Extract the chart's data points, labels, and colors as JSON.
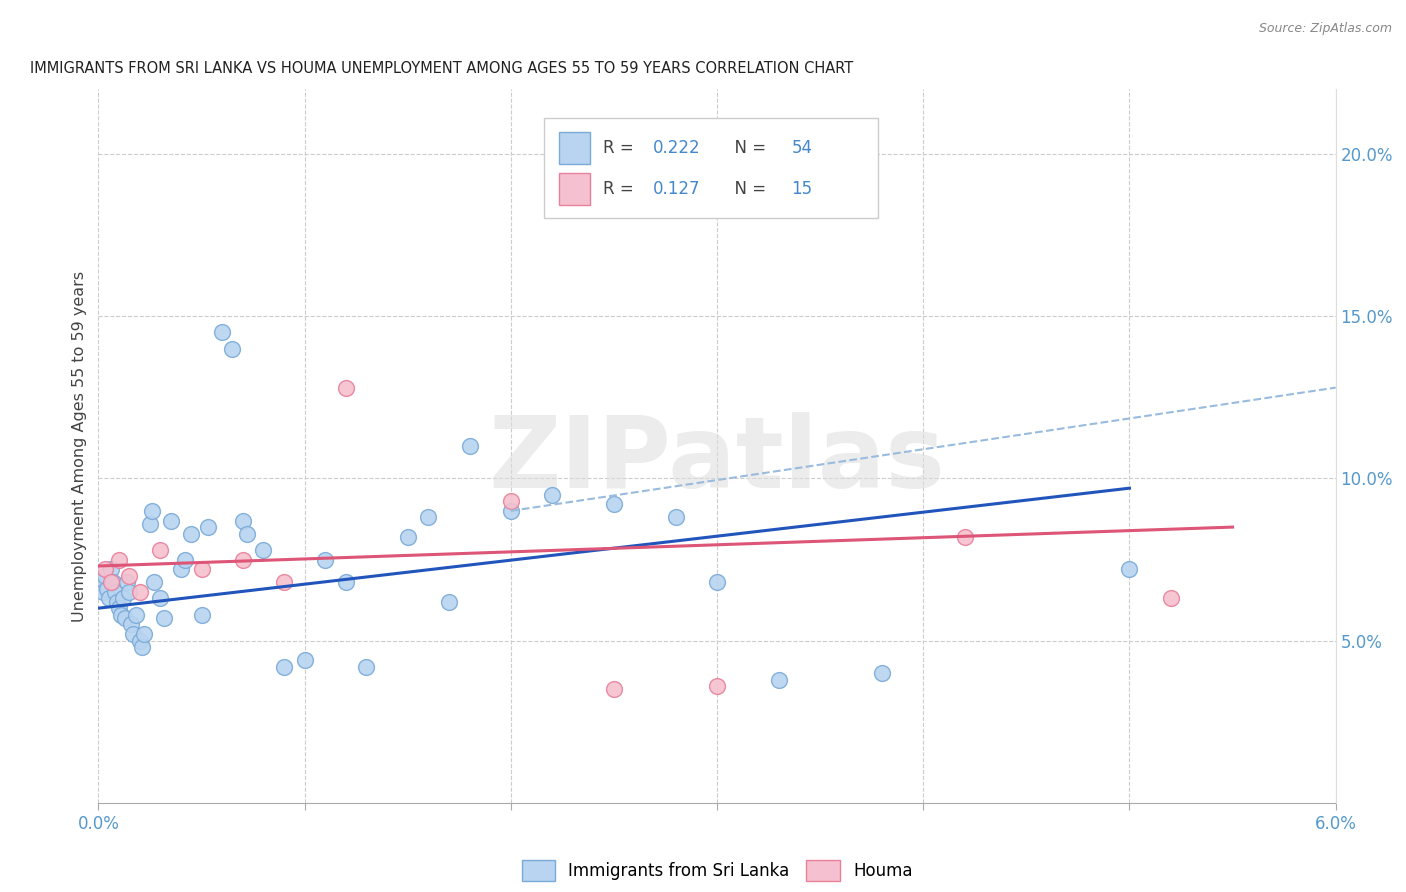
{
  "title": "IMMIGRANTS FROM SRI LANKA VS HOUMA UNEMPLOYMENT AMONG AGES 55 TO 59 YEARS CORRELATION CHART",
  "source": "Source: ZipAtlas.com",
  "ylabel": "Unemployment Among Ages 55 to 59 years",
  "xlim": [
    0.0,
    0.06
  ],
  "ylim": [
    0.0,
    0.22
  ],
  "xticks": [
    0.0,
    0.01,
    0.02,
    0.03,
    0.04,
    0.05,
    0.06
  ],
  "xtick_labels": [
    "0.0%",
    "",
    "",
    "",
    "",
    "",
    "6.0%"
  ],
  "yticks_right": [
    0.05,
    0.1,
    0.15,
    0.2
  ],
  "ytick_right_labels": [
    "5.0%",
    "10.0%",
    "15.0%",
    "20.0%"
  ],
  "blue_r": "0.222",
  "blue_n": "54",
  "pink_r": "0.127",
  "pink_n": "15",
  "blue_color": "#b8d4f0",
  "blue_edge_color": "#7aaad8",
  "pink_color": "#f5c0cf",
  "pink_edge_color": "#e8809a",
  "blue_line_color": "#2255bb",
  "pink_line_color": "#dd5577",
  "dashed_line_color": "#99bbdd",
  "watermark_text": "ZIPatlas",
  "legend_label_blue": "Immigrants from Sri Lanka",
  "legend_label_pink": "Houma",
  "blue_scatter_x": [
    0.0001,
    0.0002,
    0.0003,
    0.0004,
    0.0005,
    0.0006,
    0.0007,
    0.0008,
    0.0009,
    0.001,
    0.0011,
    0.0012,
    0.0013,
    0.0014,
    0.0015,
    0.0016,
    0.0017,
    0.0018,
    0.002,
    0.0021,
    0.0022,
    0.0025,
    0.0026,
    0.0027,
    0.003,
    0.0032,
    0.0035,
    0.004,
    0.0042,
    0.0045,
    0.005,
    0.0053,
    0.006,
    0.0065,
    0.007,
    0.0072,
    0.008,
    0.009,
    0.01,
    0.011,
    0.012,
    0.013,
    0.015,
    0.016,
    0.017,
    0.018,
    0.02,
    0.022,
    0.025,
    0.028,
    0.03,
    0.033,
    0.038,
    0.05
  ],
  "blue_scatter_y": [
    0.068,
    0.065,
    0.07,
    0.066,
    0.063,
    0.072,
    0.068,
    0.065,
    0.062,
    0.06,
    0.058,
    0.063,
    0.057,
    0.068,
    0.065,
    0.055,
    0.052,
    0.058,
    0.05,
    0.048,
    0.052,
    0.086,
    0.09,
    0.068,
    0.063,
    0.057,
    0.087,
    0.072,
    0.075,
    0.083,
    0.058,
    0.085,
    0.145,
    0.14,
    0.087,
    0.083,
    0.078,
    0.042,
    0.044,
    0.075,
    0.068,
    0.042,
    0.082,
    0.088,
    0.062,
    0.11,
    0.09,
    0.095,
    0.092,
    0.088,
    0.068,
    0.038,
    0.04,
    0.072
  ],
  "pink_scatter_x": [
    0.0003,
    0.0006,
    0.001,
    0.0015,
    0.002,
    0.003,
    0.005,
    0.007,
    0.009,
    0.012,
    0.02,
    0.025,
    0.03,
    0.042,
    0.052
  ],
  "pink_scatter_y": [
    0.072,
    0.068,
    0.075,
    0.07,
    0.065,
    0.078,
    0.072,
    0.075,
    0.068,
    0.128,
    0.093,
    0.035,
    0.036,
    0.082,
    0.063
  ],
  "blue_trend_x": [
    0.0,
    0.05
  ],
  "blue_trend_y": [
    0.06,
    0.097
  ],
  "pink_trend_x": [
    0.0,
    0.055
  ],
  "pink_trend_y": [
    0.073,
    0.085
  ],
  "dashed_trend_x": [
    0.02,
    0.06
  ],
  "dashed_trend_y": [
    0.09,
    0.128
  ]
}
